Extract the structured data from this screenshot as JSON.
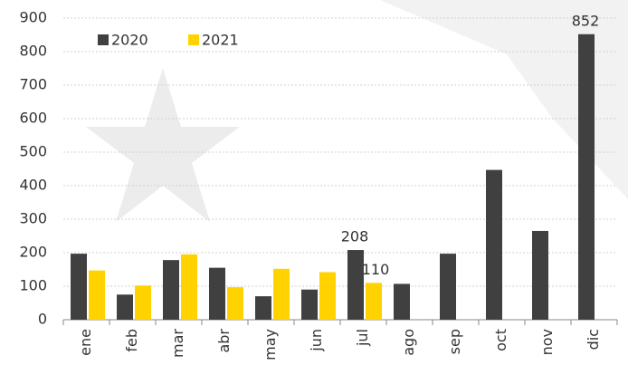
{
  "chart_data": {
    "type": "bar",
    "categories": [
      "ene",
      "feb",
      "mar",
      "abr",
      "may",
      "jun",
      "jul",
      "ago",
      "sep",
      "oct",
      "nov",
      "dic"
    ],
    "series": [
      {
        "name": "2020",
        "color": "#404040",
        "values": [
          197,
          75,
          178,
          155,
          70,
          90,
          208,
          107,
          197,
          447,
          265,
          852
        ],
        "value_labels": [
          null,
          null,
          null,
          null,
          null,
          null,
          "208",
          null,
          null,
          null,
          null,
          "852"
        ]
      },
      {
        "name": "2021",
        "color": "#ffd200",
        "values": [
          147,
          102,
          195,
          97,
          152,
          142,
          110,
          null,
          null,
          null,
          null,
          null
        ],
        "value_labels": [
          null,
          null,
          null,
          null,
          null,
          null,
          "110",
          null,
          null,
          null,
          null,
          null
        ]
      }
    ],
    "ylim": [
      0,
      900
    ],
    "yticks": [
      0,
      100,
      200,
      300,
      400,
      500,
      600,
      700,
      800,
      900
    ],
    "grid": true,
    "legend": "top-left"
  }
}
